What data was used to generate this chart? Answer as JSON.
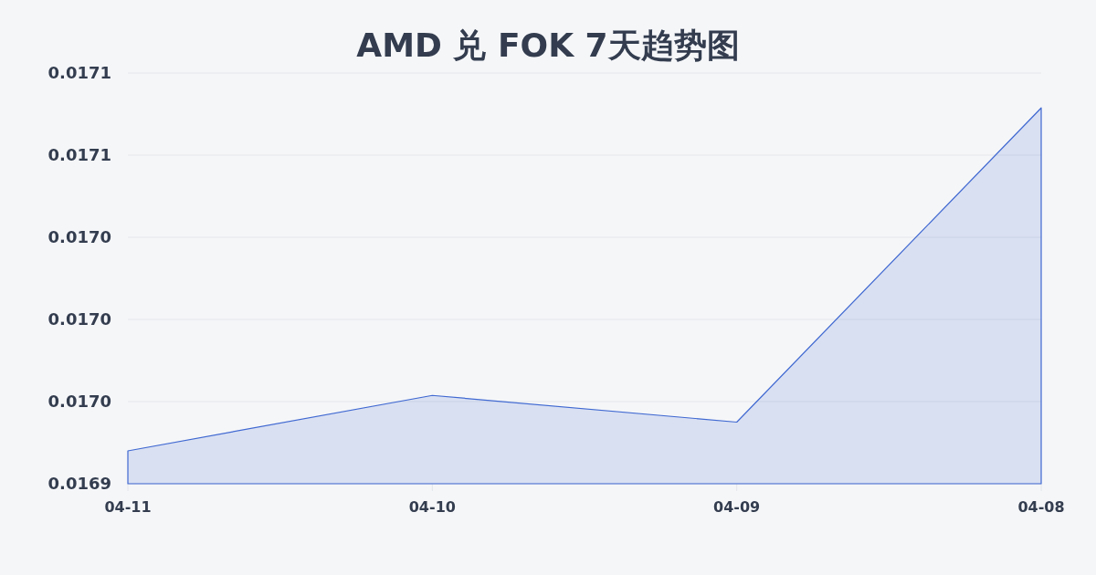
{
  "chart_data": {
    "type": "area",
    "title": "AMD 兑 FOK 7天趋势图",
    "categories": [
      "04-11",
      "04-10",
      "04-09",
      "04-08"
    ],
    "series": [
      {
        "color": "#3f68d1",
        "values": [
          0.016936,
          0.016963,
          0.01695,
          0.017103
        ]
      }
    ],
    "ylim": [
      0.01692,
      0.01712
    ],
    "yticks": [
      {
        "value": 0.01692,
        "label": "0.0169"
      },
      {
        "value": 0.01696,
        "label": "0.0170"
      },
      {
        "value": 0.017,
        "label": "0.0170"
      },
      {
        "value": 0.01704,
        "label": "0.0170"
      },
      {
        "value": 0.01708,
        "label": "0.0171"
      },
      {
        "value": 0.01712,
        "label": "0.0171"
      }
    ],
    "grid": "y"
  }
}
